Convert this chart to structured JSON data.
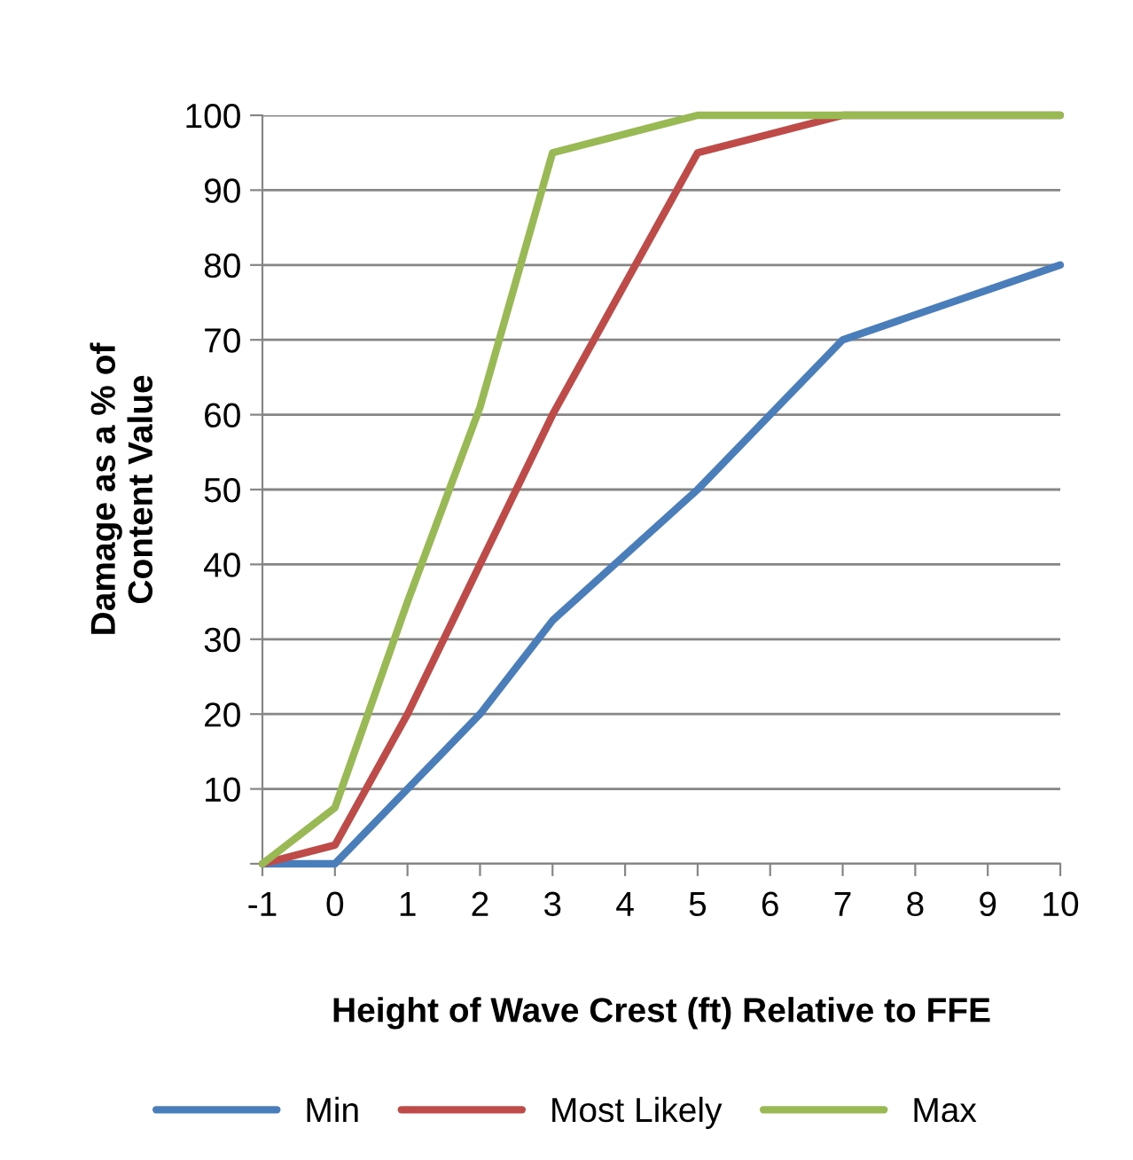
{
  "chart_data": {
    "type": "line",
    "xlabel": "Height of Wave Crest (ft) Relative to FFE",
    "ylabel": "Damage as a % of\nContent Value",
    "x": [
      -1,
      0,
      1,
      2,
      3,
      5,
      7,
      10
    ],
    "series": [
      {
        "name": "Min",
        "color": "#4a7ebb",
        "values": [
          0,
          0,
          10,
          20,
          32.5,
          50,
          70,
          80
        ]
      },
      {
        "name": "Most Likely",
        "color": "#be4b48",
        "values": [
          0,
          2.5,
          20,
          40,
          60,
          95,
          100,
          100
        ]
      },
      {
        "name": "Max",
        "color": "#98b954",
        "values": [
          0,
          7.5,
          35,
          61,
          95,
          100,
          100,
          100
        ]
      }
    ],
    "xlim": [
      -1,
      10
    ],
    "xticks": [
      -1,
      0,
      1,
      2,
      3,
      4,
      5,
      6,
      7,
      8,
      9,
      10
    ],
    "ylim": [
      0,
      100
    ],
    "yticks": [
      {
        "value": 0,
        "label": null
      },
      10,
      20,
      30,
      40,
      50,
      60,
      70,
      80,
      90,
      100
    ],
    "grid": "y",
    "legend": "bottom",
    "marker": "none",
    "line_style": "solid"
  }
}
